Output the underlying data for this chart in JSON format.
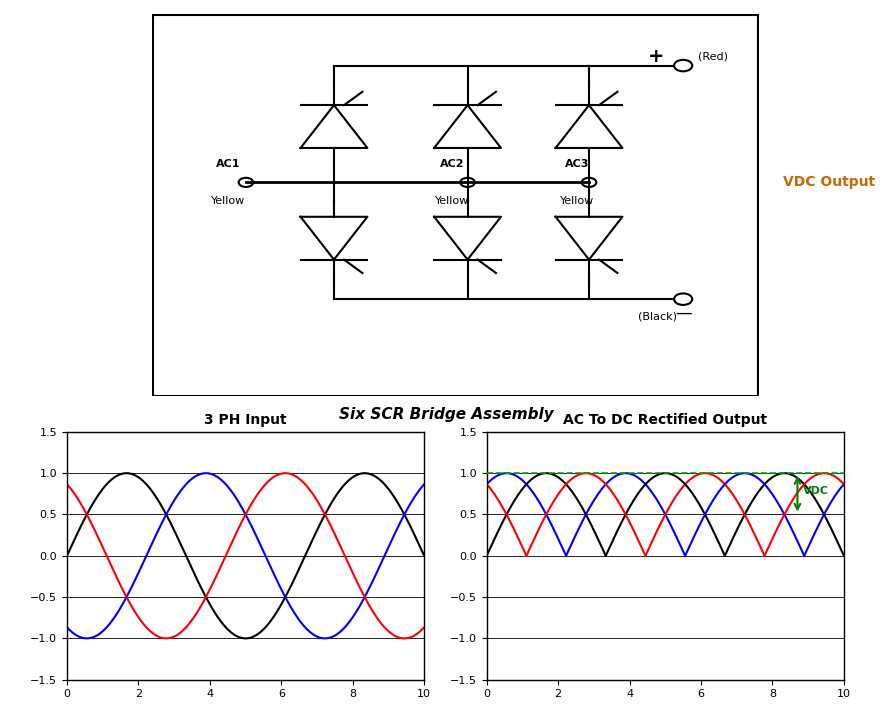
{
  "title": "Six SCR Bridge Assembly",
  "plot1_title": "3 PH Input",
  "plot2_title": "AC To DC Rectified Output",
  "vdc_color": "#008000",
  "phase_colors": [
    "#000000",
    "#0000ff",
    "#ff0000"
  ],
  "ylim": [
    -1.5,
    1.5
  ],
  "xlim": [
    0,
    10
  ],
  "yticks": [
    -1.5,
    -1.0,
    -0.5,
    0,
    0.5,
    1.0,
    1.5
  ],
  "xticks": [
    0,
    2,
    4,
    6,
    8,
    10
  ],
  "bg_color": "#ffffff",
  "schematic_line_color": "#000000",
  "vdc_output_color": "#cc6600",
  "dashed_color": "#00aa00",
  "freq_period": 6.667,
  "phase_shift_deg": 120
}
